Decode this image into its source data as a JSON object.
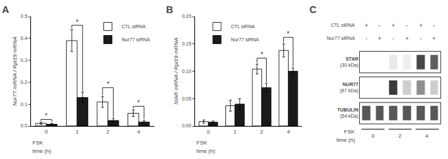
{
  "chart_data": [
    {
      "type": "bar",
      "title": "A",
      "ylabel": "Nur77 mRNA / Rpl19 mRNA",
      "categories": [
        "0",
        "1",
        "2",
        "4"
      ],
      "series": [
        {
          "name": "CTL siRNA",
          "color": "white",
          "values": [
            0.012,
            0.39,
            0.11,
            0.058
          ],
          "errors": [
            0.005,
            0.05,
            0.025,
            0.015
          ]
        },
        {
          "name": "Nur77 siRNA",
          "color": "#1a1a1a",
          "values": [
            0.008,
            0.13,
            0.025,
            0.018
          ],
          "errors": [
            0.003,
            0.025,
            0.01,
            0.006
          ]
        }
      ],
      "ylim": [
        0,
        0.5
      ],
      "yticks": [
        {
          "value": 0,
          "label": "0.0"
        },
        0.1,
        0.2,
        0.3,
        0.4,
        0.5
      ],
      "significance": [
        {
          "category": "0",
          "height": 0.03,
          "label": "*"
        },
        {
          "category": "1",
          "height": 0.46,
          "label": "*"
        },
        {
          "category": "2",
          "height": 0.175,
          "label": "*"
        },
        {
          "category": "4",
          "height": 0.09,
          "label": "*"
        }
      ],
      "annotations": [
        "FSK",
        "time (h)"
      ],
      "legend": "upper right",
      "grid": false
    },
    {
      "type": "bar",
      "title": "B",
      "ylabel": "StAR mRNA / Rpl19 mRNA",
      "categories": [
        "0",
        "1",
        "2",
        "4"
      ],
      "series": [
        {
          "name": "CTL siRNA",
          "color": "white",
          "values": [
            0.008,
            0.037,
            0.104,
            0.138
          ],
          "errors": [
            0.003,
            0.01,
            0.009,
            0.012
          ]
        },
        {
          "name": "Nur77 siRNA",
          "color": "#1a1a1a",
          "values": [
            0.007,
            0.04,
            0.07,
            0.1
          ],
          "errors": [
            0.002,
            0.01,
            0.008,
            0.006
          ]
        }
      ],
      "ylim": [
        0,
        0.2
      ],
      "yticks": [
        {
          "value": 0,
          "label": "0.00"
        },
        0.05,
        {
          "value": 0.1,
          "label": "0.10"
        },
        0.15,
        {
          "value": 0.2,
          "label": "0.20"
        }
      ],
      "significance": [
        {
          "category": "2",
          "height": 0.124,
          "label": "*"
        },
        {
          "category": "4",
          "height": 0.162,
          "label": "*"
        }
      ],
      "annotations": [
        "FSK",
        "time (h)"
      ],
      "legend": "upper left",
      "grid": false
    },
    {
      "type": "heatmap",
      "title": "C",
      "rows": [
        {
          "name": "STAR",
          "label": "(30 kDa)"
        },
        {
          "name": "NUR77",
          "label": "(67 kDa)"
        },
        {
          "name": "TUBULIN",
          "label": "(54 kDa)"
        }
      ],
      "cells": [
        [
          0.0,
          0.0,
          0.1,
          0.07,
          0.82,
          0.72
        ],
        [
          0.0,
          0.0,
          0.88,
          0.22,
          0.5,
          0.22
        ],
        [
          0.75,
          0.75,
          0.75,
          0.75,
          0.75,
          0.75
        ]
      ],
      "lanes": [
        {
          "name": "CTL siRNA",
          "labels": [
            "+",
            "-",
            "+",
            "-",
            "+",
            "-"
          ]
        },
        {
          "name": "Nur77 siRNA",
          "labels": [
            "-",
            "+",
            "-",
            "+",
            "-",
            "+"
          ]
        }
      ],
      "group_labels": [
        "0",
        "2",
        "4"
      ],
      "annotations": [
        "FSK",
        "time (h)"
      ]
    }
  ]
}
